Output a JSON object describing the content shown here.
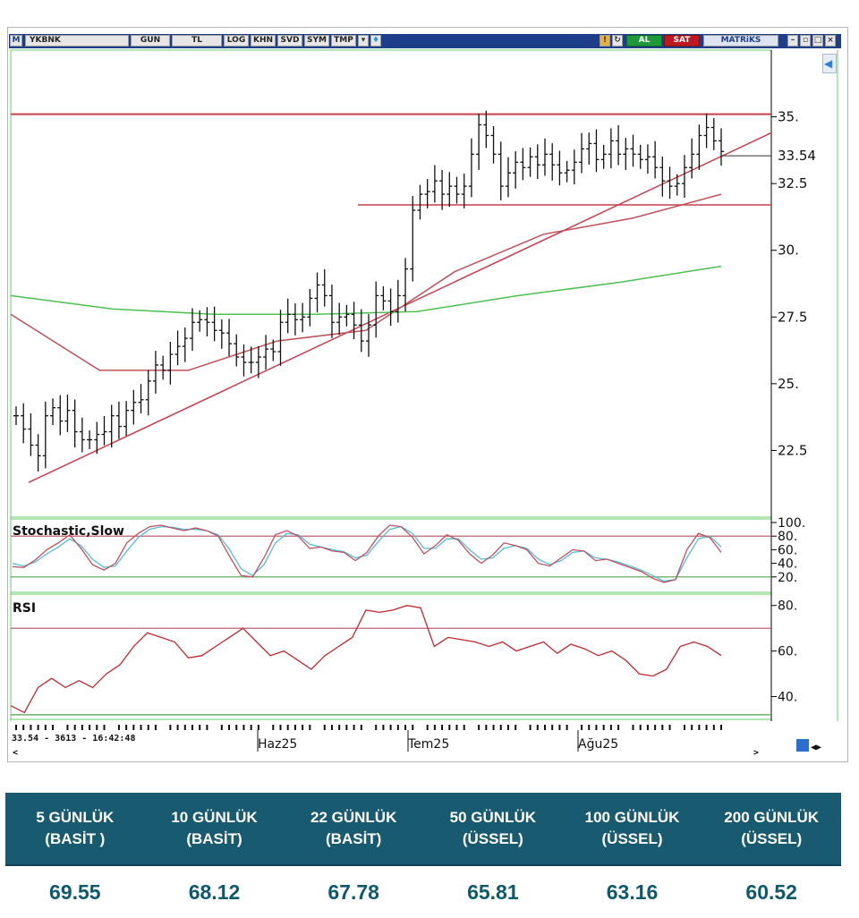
{
  "toolbar": {
    "symbol": "YKBNK",
    "buttons": [
      "GUN",
      "TL",
      "LOG",
      "KHN",
      "SVD",
      "SYM",
      "TMP"
    ],
    "buy_label": "AL",
    "sell_label": "SAT",
    "brand": "MATRiKS",
    "menu_letter": "M"
  },
  "status_bar": {
    "text": "33.54 - 3613 - 16:42:48"
  },
  "colors": {
    "price_bars": "#111111",
    "resistance_line": "#c8404a",
    "trendline": "#c84050",
    "ma_red": "#c05058",
    "ma_green": "#4cc050",
    "stoch_k": "#c05060",
    "stoch_d": "#50c0d0",
    "rsi_line": "#c02830",
    "table_header_bg": "#185a70",
    "table_value_text": "#0e5a6c"
  },
  "chart_data": [
    {
      "type": "candlestick",
      "title": "",
      "symbol": "YKBNK",
      "y_ticks": [
        "35.",
        "33.54",
        "32.5",
        "30.",
        "27.5",
        "25.",
        "22.5"
      ],
      "ylim": [
        20,
        37.5
      ],
      "x_labels": [
        "Haz25",
        "Tem25",
        "Ağu25"
      ],
      "last_price": 33.54,
      "ohlc_close": [
        23.8,
        23.3,
        22.7,
        22.3,
        23.8,
        24.1,
        23.6,
        24.0,
        23.2,
        22.9,
        22.9,
        23.1,
        23.2,
        23.8,
        23.4,
        24.0,
        24.3,
        24.4,
        25.1,
        25.7,
        25.5,
        26.1,
        26.4,
        26.7,
        27.3,
        27.4,
        27.3,
        27.0,
        26.9,
        26.5,
        26.0,
        25.8,
        25.8,
        26.0,
        26.3,
        26.2,
        27.3,
        27.6,
        27.4,
        27.5,
        28.2,
        28.7,
        28.3,
        27.3,
        27.5,
        27.6,
        27.2,
        26.6,
        27.2,
        28.3,
        28.1,
        27.7,
        28.3,
        29.3,
        31.5,
        32.1,
        32.2,
        32.6,
        32.1,
        32.4,
        32.1,
        32.4,
        33.6,
        34.7,
        34.3,
        33.6,
        32.4,
        32.9,
        33.3,
        33.1,
        33.5,
        33.2,
        33.6,
        33.2,
        32.9,
        33.0,
        33.3,
        33.8,
        34.0,
        33.4,
        33.6,
        34.1,
        33.6,
        33.8,
        33.6,
        33.4,
        33.5,
        33.1,
        32.6,
        32.4,
        32.5,
        33.1,
        33.6,
        34.3,
        34.6,
        34.1,
        33.7
      ],
      "resistance_levels": [
        35.1,
        31.7
      ],
      "series": [
        {
          "name": "",
          "type": "moving_average",
          "values": [
            27.6,
            25.5,
            25.5,
            26.6,
            27.0,
            29.2,
            30.6,
            31.2,
            32.1
          ]
        },
        {
          "name": "",
          "type": "moving_average",
          "values": [
            28.3,
            27.8,
            27.6,
            27.6,
            27.7,
            28.3,
            28.8,
            29.4
          ]
        }
      ]
    },
    {
      "type": "line",
      "title": "Stochastic,Slow",
      "y_ticks": [
        "100.",
        "80.",
        "60.",
        "40.",
        "20."
      ],
      "ylim": [
        0,
        100
      ],
      "levels": [
        80,
        20
      ],
      "series": [
        {
          "name": "",
          "values": [
            35,
            34,
            45,
            60,
            70,
            82,
            62,
            38,
            30,
            40,
            70,
            84,
            94,
            96,
            92,
            88,
            92,
            88,
            80,
            50,
            22,
            20,
            48,
            82,
            88,
            80,
            62,
            64,
            58,
            56,
            44,
            56,
            80,
            96,
            94,
            78,
            54,
            66,
            82,
            74,
            54,
            40,
            52,
            70,
            66,
            60,
            40,
            36,
            48,
            60,
            58,
            44,
            46,
            40,
            34,
            28,
            18,
            12,
            16,
            60,
            84,
            78,
            56
          ]
        },
        {
          "name": "",
          "values": [
            40,
            36,
            42,
            54,
            64,
            76,
            66,
            46,
            34,
            36,
            58,
            78,
            90,
            94,
            93,
            90,
            90,
            88,
            82,
            60,
            32,
            22,
            38,
            70,
            84,
            82,
            68,
            64,
            60,
            57,
            48,
            52,
            72,
            90,
            94,
            84,
            62,
            62,
            76,
            76,
            60,
            46,
            48,
            62,
            66,
            62,
            46,
            38,
            44,
            56,
            58,
            48,
            46,
            42,
            36,
            30,
            22,
            14,
            16,
            48,
            76,
            80,
            64
          ]
        }
      ]
    },
    {
      "type": "line",
      "title": "RSI",
      "y_ticks": [
        "80.",
        "60.",
        "40."
      ],
      "ylim": [
        30,
        85
      ],
      "levels": [
        70,
        32
      ],
      "series": [
        {
          "name": "",
          "values": [
            36,
            33,
            44,
            48,
            44,
            47,
            44,
            50,
            54,
            62,
            68,
            66,
            64,
            57,
            58,
            62,
            66,
            70,
            64,
            58,
            60,
            56,
            52,
            58,
            62,
            66,
            78,
            77,
            78,
            80,
            79,
            62,
            66,
            65,
            64,
            62,
            64,
            60,
            62,
            64,
            59,
            63,
            61,
            58,
            60,
            56,
            50,
            49,
            52,
            62,
            64,
            62,
            58
          ]
        }
      ]
    },
    {
      "type": "table",
      "columns": [
        "5 GÜNLÜK\n(BASİT )",
        "10 GÜNLÜK\n(BASİT)",
        "22 GÜNLÜK\n(BASİT)",
        "50 GÜNLÜK\n(ÜSSEL)",
        "100 GÜNLÜK\n(ÜSSEL)",
        "200 GÜNLÜK\n(ÜSSEL)"
      ],
      "values": [
        "69.55",
        "68.12",
        "67.78",
        "65.81",
        "63.16",
        "60.52"
      ]
    }
  ]
}
